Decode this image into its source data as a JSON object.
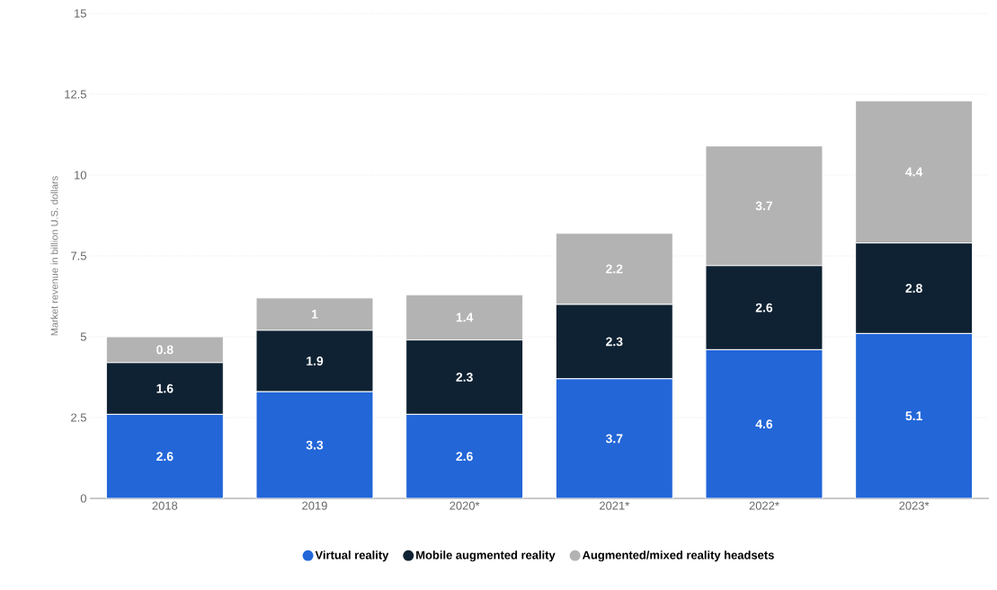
{
  "chart_data": {
    "type": "bar",
    "stacked": true,
    "ylabel": "Market revenue in billion U.S. dollars",
    "categories": [
      "2018",
      "2019",
      "2020*",
      "2021*",
      "2022*",
      "2023*"
    ],
    "series": [
      {
        "name": "Virtual reality",
        "color": "#2266d8",
        "values": [
          2.6,
          3.3,
          2.6,
          3.7,
          4.6,
          5.1
        ]
      },
      {
        "name": "Mobile augmented reality",
        "color": "#0f2233",
        "values": [
          1.6,
          1.9,
          2.3,
          2.3,
          2.6,
          2.8
        ]
      },
      {
        "name": "Augmented/mixed reality headsets",
        "color": "#b3b3b3",
        "values": [
          0.8,
          1,
          1.4,
          2.2,
          3.7,
          4.4
        ]
      }
    ],
    "ylim": [
      0,
      15
    ],
    "yticks": [
      0,
      2.5,
      5,
      7.5,
      10,
      12.5,
      15
    ],
    "grid": "y",
    "legend": "bottom",
    "data_labels": true
  }
}
